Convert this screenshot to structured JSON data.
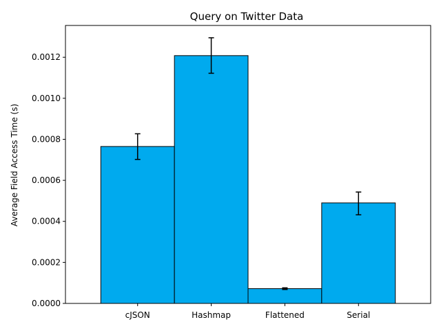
{
  "chart_data": {
    "type": "bar",
    "title": "Query on Twitter Data",
    "xlabel": "",
    "ylabel": "Average Field Access Time (s)",
    "categories": [
      "cJSON",
      "Hashmap",
      "Flattened",
      "Serial"
    ],
    "values": [
      0.000765,
      0.001208,
      7.2e-05,
      0.00049
    ],
    "error_low": [
      0.000702,
      0.001122,
      6.8e-05,
      0.000432
    ],
    "error_high": [
      0.000827,
      0.001295,
      7.6e-05,
      0.000543
    ],
    "ylim": [
      0,
      0.001355
    ],
    "yticks": [
      0.0,
      0.0002,
      0.0004,
      0.0006,
      0.0008,
      0.001,
      0.0012
    ],
    "ytick_labels": [
      "0.0000",
      "0.0002",
      "0.0004",
      "0.0006",
      "0.0008",
      "0.0010",
      "0.0012"
    ],
    "bar_color": "#00aaee",
    "bar_edge_color": "#000000",
    "error_color": "#000000",
    "grid": false,
    "legend": "none"
  }
}
